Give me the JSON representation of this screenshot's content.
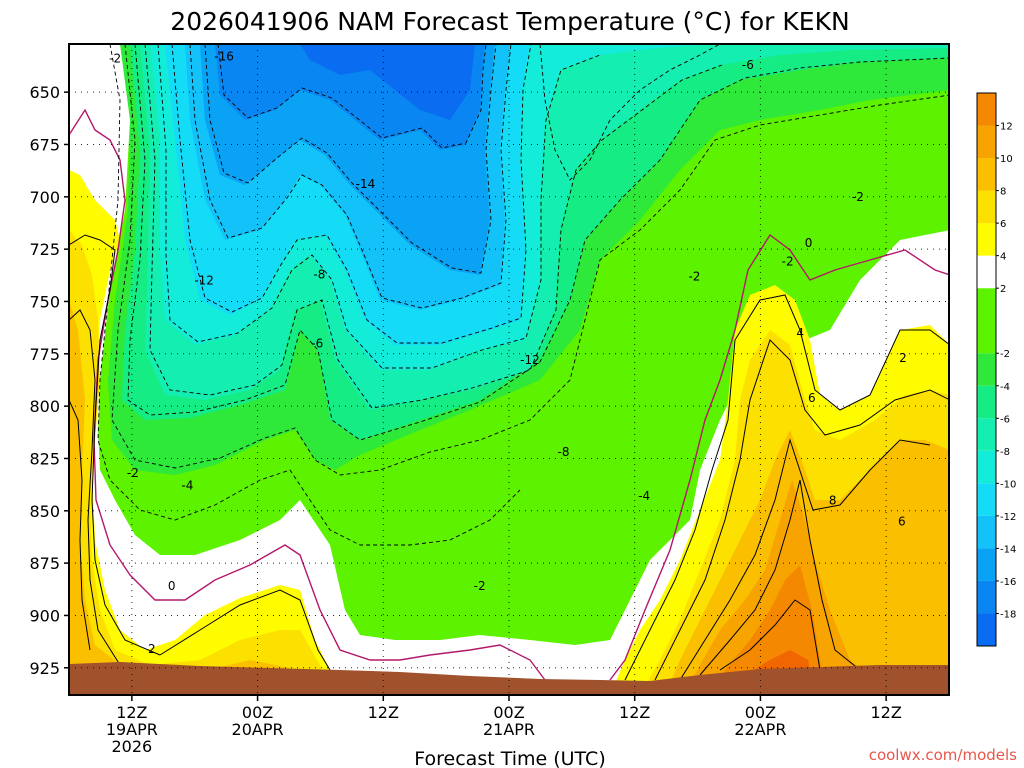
{
  "chart_data": {
    "type": "heatmap",
    "title": "2026041906 NAM Forecast Temperature (°C) for KEKN",
    "xlabel": "Forecast Time (UTC)",
    "ylabel": "",
    "ylim": [
      938,
      627
    ],
    "y_ticks": [
      650,
      675,
      700,
      725,
      750,
      775,
      800,
      825,
      850,
      875,
      900,
      925
    ],
    "x_ticks": [
      {
        "hour": 6,
        "line1": "12Z",
        "line2": "19APR",
        "line3": "2026"
      },
      {
        "hour": 18,
        "line1": "00Z",
        "line2": "20APR",
        "line3": ""
      },
      {
        "hour": 30,
        "line1": "12Z",
        "line2": "",
        "line3": ""
      },
      {
        "hour": 42,
        "line1": "00Z",
        "line2": "21APR",
        "line3": ""
      },
      {
        "hour": 54,
        "line1": "12Z",
        "line2": "",
        "line3": ""
      },
      {
        "hour": 66,
        "line1": "00Z",
        "line2": "22APR",
        "line3": ""
      },
      {
        "hour": 78,
        "line1": "12Z",
        "line2": "",
        "line3": ""
      }
    ],
    "xlim": [
      0,
      84
    ],
    "colorbar": {
      "levels": [
        -20,
        -18,
        -16,
        -14,
        -12,
        -10,
        -8,
        -6,
        -4,
        -2,
        2,
        4,
        6,
        8,
        10,
        12,
        14
      ],
      "labels": [
        "-18",
        "-16",
        "-14",
        "-12",
        "-10",
        "-8",
        "-6",
        "-4",
        "-2",
        "2",
        "4",
        "6",
        "8",
        "10",
        "12"
      ],
      "label_values": [
        -18,
        -16,
        -14,
        -12,
        -10,
        -8,
        -6,
        -4,
        -2,
        2,
        4,
        6,
        8,
        10,
        12
      ],
      "colors": [
        "#0a6cf0",
        "#0a86f2",
        "#0aa2f4",
        "#12c2f8",
        "#14dcf6",
        "#12ecd8",
        "#14eeb0",
        "#16ec84",
        "#2ee83a",
        "#5cf200",
        "#ffffff",
        "#fffc00",
        "#fce000",
        "#fac000",
        "#f8a400",
        "#f48800",
        "#f06600"
      ]
    },
    "contour_labels": [
      {
        "text": "-16",
        "hour": 14.8,
        "p": 633
      },
      {
        "text": "-2",
        "hour": 4.4,
        "p": 634
      },
      {
        "text": "-6",
        "hour": 64.8,
        "p": 637
      },
      {
        "text": "-14",
        "hour": 28.3,
        "p": 694
      },
      {
        "text": "-2",
        "hour": 75.3,
        "p": 700
      },
      {
        "text": "0",
        "hour": 70.6,
        "p": 722
      },
      {
        "text": "-12",
        "hour": 12.9,
        "p": 740
      },
      {
        "text": "-8",
        "hour": 23.9,
        "p": 737
      },
      {
        "text": "-2",
        "hour": 59.7,
        "p": 738
      },
      {
        "text": "-2",
        "hour": 68.6,
        "p": 731
      },
      {
        "text": "4",
        "hour": 69.8,
        "p": 765
      },
      {
        "text": "-6",
        "hour": 23.7,
        "p": 770
      },
      {
        "text": "-12",
        "hour": 44.0,
        "p": 778
      },
      {
        "text": "2",
        "hour": 79.6,
        "p": 777
      },
      {
        "text": "6",
        "hour": 70.9,
        "p": 796
      },
      {
        "text": "-8",
        "hour": 47.2,
        "p": 822
      },
      {
        "text": "-2",
        "hour": 6.1,
        "p": 832
      },
      {
        "text": "-4",
        "hour": 11.3,
        "p": 838
      },
      {
        "text": "8",
        "hour": 72.9,
        "p": 845
      },
      {
        "text": "-4",
        "hour": 54.9,
        "p": 843
      },
      {
        "text": "6",
        "hour": 79.5,
        "p": 855
      },
      {
        "text": "0",
        "hour": 9.8,
        "p": 886
      },
      {
        "text": "-2",
        "hour": 39.2,
        "p": 886
      },
      {
        "text": "2",
        "hour": 7.9,
        "p": 916
      }
    ]
  },
  "credit": "coolwx.com/models"
}
